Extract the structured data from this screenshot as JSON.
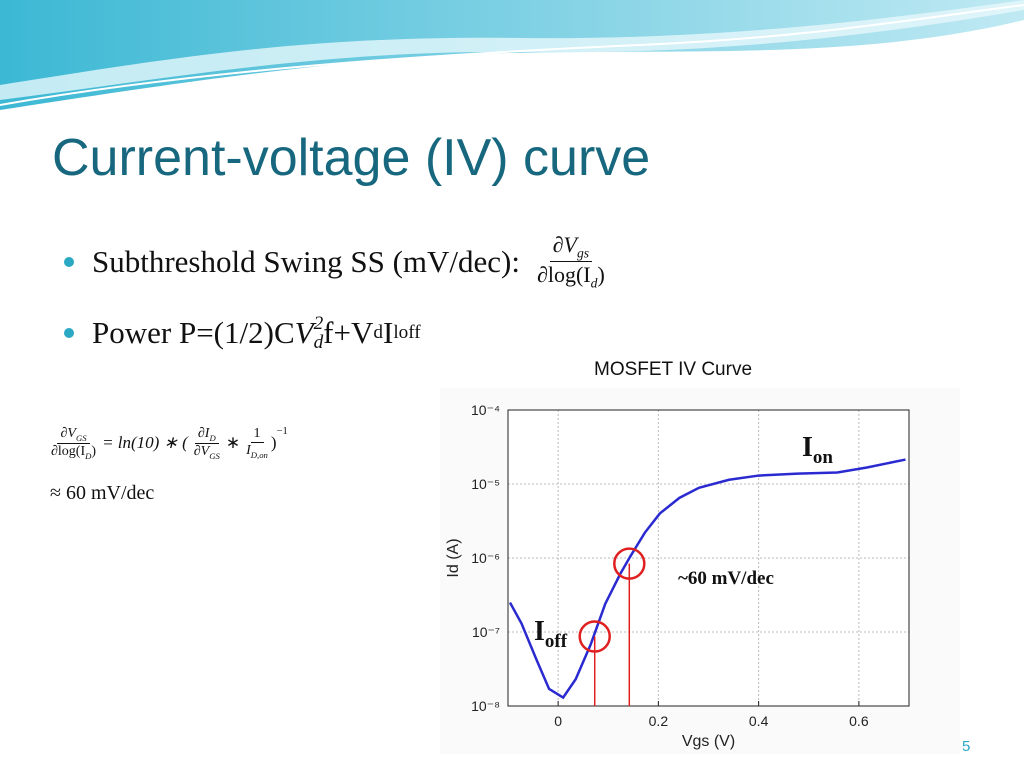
{
  "header": {
    "title": "Current-voltage (IV) curve"
  },
  "bullets": [
    {
      "text": "Subthreshold Swing SS (mV/dec):",
      "numerator": [
        "∂V",
        "gs"
      ],
      "denominator": [
        "∂log(I",
        "d",
        ")"
      ]
    },
    {
      "parts": [
        "Power P=(1/2)C",
        "V",
        "d",
        "2",
        "f+V",
        "d",
        "I",
        "loff"
      ]
    }
  ],
  "equation": {
    "lhs_num": [
      "∂V",
      "GS"
    ],
    "lhs_den": [
      "∂log(I",
      "D",
      ")"
    ],
    "middle": "= ln(10) ∗ (",
    "f1_num": [
      "∂I",
      "D"
    ],
    "f1_den": [
      "∂V",
      "GS"
    ],
    "times": "∗",
    "f2_num": "1",
    "f2_den": [
      "I",
      "D,on"
    ],
    "close": ")",
    "exp": "−1",
    "result": "≈ 60 mV/dec"
  },
  "page_number": "5",
  "chart_data": {
    "type": "line",
    "title": "MOSFET IV Curve",
    "x_label": "Vgs (V)",
    "y_label": "Id (A)",
    "x": [
      -0.096,
      -0.073,
      -0.043,
      -0.018,
      0.01,
      0.035,
      0.065,
      0.094,
      0.124,
      0.144,
      0.173,
      0.203,
      0.242,
      0.281,
      0.341,
      0.4,
      0.478,
      0.557,
      0.616,
      0.693
    ],
    "values": [
      2.5e-07,
      1.3e-07,
      4.2e-08,
      1.7e-08,
      1.3e-08,
      2.3e-08,
      6.8e-08,
      2.4e-07,
      6.1e-07,
      1.05e-06,
      2.2e-06,
      4e-06,
      6.5e-06,
      8.9e-06,
      1.14e-05,
      1.3e-05,
      1.38e-05,
      1.43e-05,
      1.67e-05,
      2.14e-05
    ],
    "color": "#2a2ad0",
    "log_y": true,
    "grid": true,
    "xlim": [
      -0.1,
      0.7
    ],
    "xticks": [
      0,
      0.2,
      0.4,
      0.6
    ],
    "ylim": [
      1e-08,
      0.0001
    ],
    "yticks": [
      {
        "value": 1e-08,
        "label": "10⁻⁸"
      },
      {
        "value": 1e-07,
        "label": "10⁻⁷"
      },
      {
        "value": 1e-06,
        "label": "10⁻⁶"
      },
      {
        "value": 1e-05,
        "label": "10⁻⁵"
      },
      {
        "value": 0.0001,
        "label": "10⁻⁴"
      }
    ],
    "highlights": [
      {
        "x": 0.073,
        "y": 8.7e-08,
        "color": "#e02020"
      },
      {
        "x": 0.142,
        "y": 8.4e-07,
        "color": "#e02020"
      }
    ],
    "annotations": [
      {
        "main": "I",
        "sub": "on"
      },
      {
        "main": "I",
        "sub": "off"
      },
      {
        "text": "~60  mV/dec"
      }
    ]
  }
}
